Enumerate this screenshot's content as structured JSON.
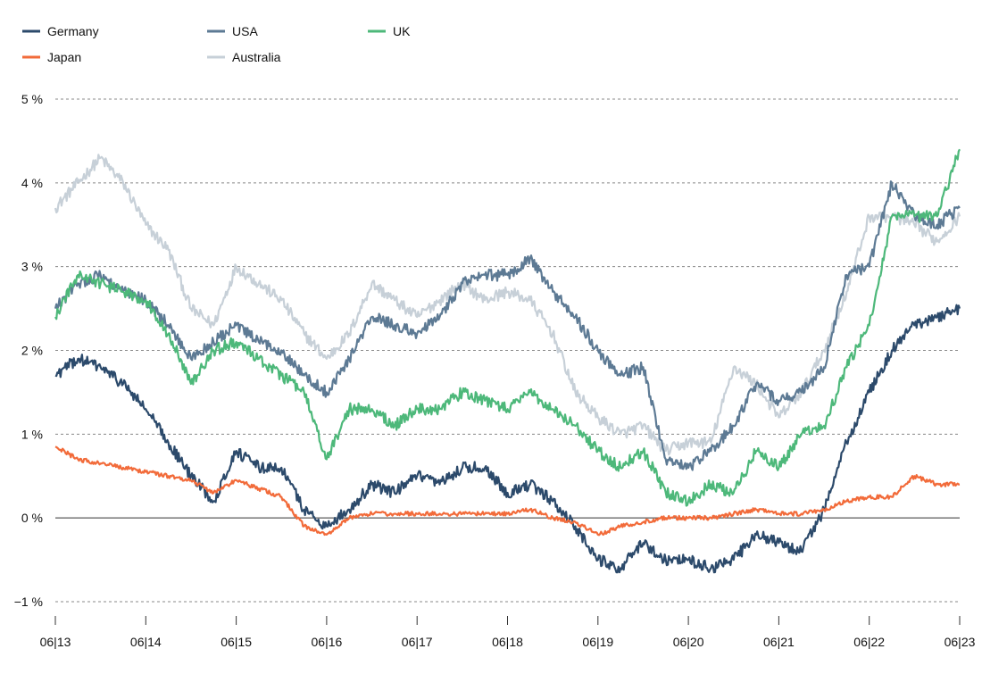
{
  "chart_data": {
    "type": "line",
    "title": "",
    "xlabel": "",
    "ylabel": "",
    "ylim": [
      -1,
      5
    ],
    "y_ticks": [
      {
        "value": 5,
        "label": "5 %"
      },
      {
        "value": 4,
        "label": "4 %"
      },
      {
        "value": 3,
        "label": "3 %"
      },
      {
        "value": 2,
        "label": "2 %"
      },
      {
        "value": 1,
        "label": "1 %"
      },
      {
        "value": 0,
        "label": "0 %"
      },
      {
        "value": -1,
        "label": "−1 %"
      }
    ],
    "x_ticks": [
      {
        "value": 2013.5,
        "label": "06|13"
      },
      {
        "value": 2014.5,
        "label": "06|14"
      },
      {
        "value": 2015.5,
        "label": "06|15"
      },
      {
        "value": 2016.5,
        "label": "06|16"
      },
      {
        "value": 2017.5,
        "label": "06|17"
      },
      {
        "value": 2018.5,
        "label": "06|18"
      },
      {
        "value": 2019.5,
        "label": "06|19"
      },
      {
        "value": 2020.5,
        "label": "06|20"
      },
      {
        "value": 2021.5,
        "label": "06|21"
      },
      {
        "value": 2022.5,
        "label": "06|22"
      },
      {
        "value": 2023.5,
        "label": "06|23"
      }
    ],
    "grid": "horizontal dashed",
    "legend_position": "top-left",
    "x": [
      2013.5,
      2013.75,
      2014.0,
      2014.25,
      2014.5,
      2014.75,
      2015.0,
      2015.25,
      2015.5,
      2015.75,
      2016.0,
      2016.25,
      2016.5,
      2016.75,
      2017.0,
      2017.25,
      2017.5,
      2017.75,
      2018.0,
      2018.25,
      2018.5,
      2018.75,
      2019.0,
      2019.25,
      2019.5,
      2019.75,
      2020.0,
      2020.25,
      2020.5,
      2020.75,
      2021.0,
      2021.25,
      2021.5,
      2021.75,
      2022.0,
      2022.25,
      2022.5,
      2022.75,
      2023.0,
      2023.25,
      2023.5
    ],
    "series": [
      {
        "name": "Germany",
        "color": "#2c4a6b",
        "values": [
          1.7,
          1.9,
          1.8,
          1.6,
          1.3,
          0.9,
          0.5,
          0.2,
          0.8,
          0.6,
          0.6,
          0.1,
          -0.1,
          0.1,
          0.4,
          0.3,
          0.5,
          0.4,
          0.6,
          0.6,
          0.3,
          0.4,
          0.2,
          -0.1,
          -0.5,
          -0.6,
          -0.3,
          -0.5,
          -0.5,
          -0.6,
          -0.5,
          -0.2,
          -0.3,
          -0.4,
          0.1,
          0.9,
          1.5,
          2.0,
          2.3,
          2.4,
          2.5
        ]
      },
      {
        "name": "USA",
        "color": "#5d7a94",
        "values": [
          2.5,
          2.8,
          2.9,
          2.7,
          2.6,
          2.3,
          1.9,
          2.1,
          2.3,
          2.1,
          2.0,
          1.7,
          1.5,
          1.9,
          2.4,
          2.3,
          2.2,
          2.4,
          2.8,
          2.9,
          2.9,
          3.1,
          2.7,
          2.4,
          2.0,
          1.7,
          1.8,
          0.7,
          0.6,
          0.8,
          1.1,
          1.6,
          1.4,
          1.5,
          1.8,
          2.9,
          3.0,
          4.0,
          3.6,
          3.5,
          3.7
        ]
      },
      {
        "name": "UK",
        "color": "#4db87a",
        "values": [
          2.4,
          2.9,
          2.8,
          2.7,
          2.6,
          2.2,
          1.6,
          2.0,
          2.1,
          1.9,
          1.7,
          1.5,
          0.7,
          1.3,
          1.3,
          1.1,
          1.3,
          1.3,
          1.5,
          1.4,
          1.3,
          1.5,
          1.3,
          1.1,
          0.8,
          0.6,
          0.8,
          0.3,
          0.2,
          0.4,
          0.3,
          0.8,
          0.6,
          1.0,
          1.1,
          1.8,
          2.3,
          3.6,
          3.6,
          3.6,
          4.4
        ]
      },
      {
        "name": "Japan",
        "color": "#f26b3a",
        "values": [
          0.85,
          0.7,
          0.65,
          0.6,
          0.55,
          0.5,
          0.45,
          0.3,
          0.45,
          0.35,
          0.25,
          -0.1,
          -0.2,
          0.0,
          0.05,
          0.05,
          0.05,
          0.05,
          0.05,
          0.05,
          0.05,
          0.1,
          0.0,
          -0.05,
          -0.2,
          -0.1,
          -0.05,
          0.0,
          0.0,
          0.0,
          0.05,
          0.1,
          0.05,
          0.05,
          0.1,
          0.2,
          0.25,
          0.25,
          0.5,
          0.4,
          0.4
        ]
      },
      {
        "name": "Australia",
        "color": "#c7d0d8",
        "values": [
          3.7,
          4.0,
          4.3,
          4.0,
          3.5,
          3.2,
          2.5,
          2.3,
          3.0,
          2.8,
          2.6,
          2.2,
          1.9,
          2.2,
          2.8,
          2.6,
          2.4,
          2.6,
          2.8,
          2.6,
          2.7,
          2.6,
          2.2,
          1.5,
          1.2,
          1.0,
          1.1,
          0.8,
          0.9,
          0.9,
          1.8,
          1.6,
          1.2,
          1.5,
          2.0,
          2.7,
          3.6,
          3.6,
          3.5,
          3.3,
          3.6
        ]
      }
    ]
  }
}
